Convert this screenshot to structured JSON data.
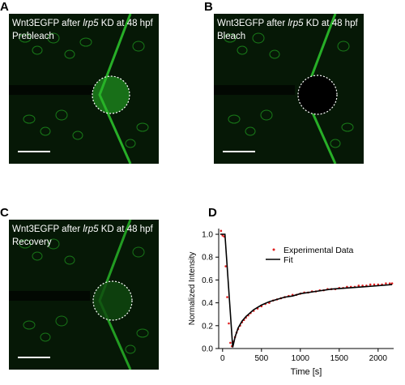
{
  "figure": {
    "panels": [
      {
        "letter": "A",
        "title_prefix": "Wnt3EGFP after ",
        "gene": "lrp5",
        "title_suffix": " KD at 48 hpf",
        "state": "Prebleach"
      },
      {
        "letter": "B",
        "title_prefix": "Wnt3EGFP after ",
        "gene": "lrp5",
        "title_suffix": " KD at 48 hpf",
        "state": "Bleach"
      },
      {
        "letter": "C",
        "title_prefix": "Wnt3EGFP after ",
        "gene": "lrp5",
        "title_suffix": " KD at 48 hpf",
        "state": "Recovery"
      },
      {
        "letter": "D"
      }
    ],
    "colors": {
      "gfp": "#22c522",
      "data_points": "#e02020",
      "fit": "#000000"
    }
  },
  "chart_data": {
    "type": "scatter",
    "xlabel": "Time [s]",
    "ylabel": "Normalized Intensity",
    "xlim": [
      -50,
      2200
    ],
    "ylim": [
      0,
      1.05
    ],
    "xticks": [
      0,
      500,
      1000,
      1500,
      2000
    ],
    "yticks": [
      "0.0",
      "0.2",
      "0.4",
      "0.6",
      "0.8",
      "1.0"
    ],
    "legend_position": "top-right",
    "series": [
      {
        "name": "Experimental Data",
        "kind": "points",
        "x": [
          -20,
          0,
          20,
          40,
          60,
          80,
          100,
          120,
          140,
          160,
          180,
          200,
          225,
          250,
          275,
          300,
          330,
          360,
          400,
          450,
          500,
          550,
          600,
          650,
          700,
          750,
          800,
          850,
          900,
          950,
          1000,
          1050,
          1100,
          1150,
          1200,
          1250,
          1300,
          1350,
          1400,
          1450,
          1500,
          1550,
          1600,
          1650,
          1700,
          1750,
          1800,
          1850,
          1900,
          1950,
          2000,
          2050,
          2100,
          2150,
          2180
        ],
        "y": [
          1.03,
          0.99,
          0.98,
          0.72,
          0.45,
          0.22,
          0.05,
          0.02,
          0.06,
          0.1,
          0.14,
          0.17,
          0.2,
          0.23,
          0.25,
          0.27,
          0.29,
          0.31,
          0.33,
          0.35,
          0.37,
          0.39,
          0.4,
          0.42,
          0.43,
          0.44,
          0.45,
          0.46,
          0.47,
          0.47,
          0.48,
          0.49,
          0.49,
          0.5,
          0.5,
          0.51,
          0.51,
          0.52,
          0.52,
          0.52,
          0.53,
          0.53,
          0.54,
          0.54,
          0.54,
          0.55,
          0.55,
          0.55,
          0.56,
          0.56,
          0.56,
          0.56,
          0.57,
          0.57,
          0.57
        ]
      },
      {
        "name": "Fit",
        "kind": "line",
        "x": [
          -30,
          30,
          130,
          160,
          200,
          250,
          300,
          350,
          400,
          500,
          600,
          700,
          800,
          900,
          1000,
          1200,
          1400,
          1600,
          1800,
          2000,
          2180
        ],
        "y": [
          1.0,
          1.0,
          0.01,
          0.1,
          0.18,
          0.24,
          0.28,
          0.31,
          0.34,
          0.38,
          0.41,
          0.43,
          0.45,
          0.46,
          0.48,
          0.5,
          0.52,
          0.53,
          0.54,
          0.55,
          0.56
        ]
      }
    ]
  }
}
